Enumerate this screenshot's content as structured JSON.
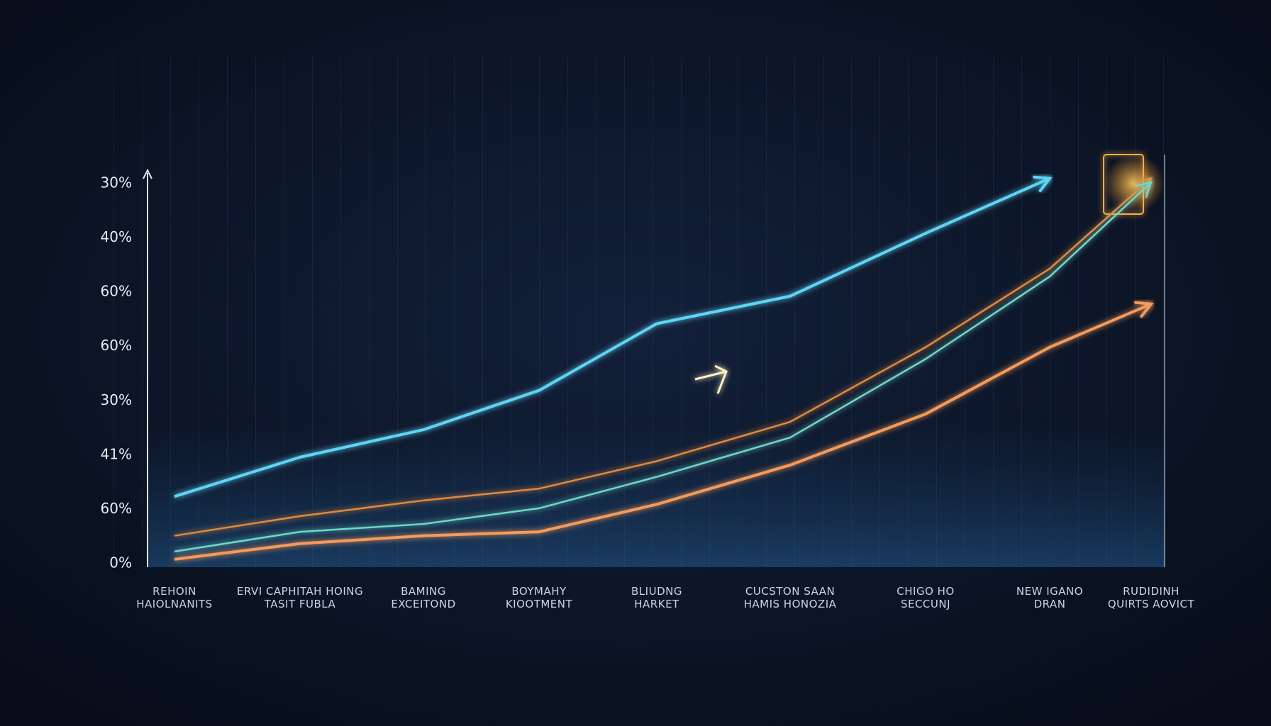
{
  "chart_data": {
    "type": "line",
    "y_labels": [
      "0%",
      "60%",
      "41%",
      "30%",
      "60%",
      "60%",
      "40%",
      "30%"
    ],
    "categories": [
      "REHOIN\nHAIOLNANITS",
      "ERVI CAPHITAH HOING\nTASIT FUBLA",
      "BAMING\nEXCEITOND",
      "BOYMAHY\nKIOOTMENT",
      "BLIUDNG\nHARKET",
      "CUCSTON SAAN\nHAMIS HONOZIA",
      "CHIGO HO\nSECCUNJ",
      "NEW IGANO\nDRAN",
      "RUDIDINH\nQUIRTS AOVICT"
    ],
    "ylim": [
      0,
      100
    ],
    "series": [
      {
        "color": "#5fd4f5",
        "values": [
          18,
          28,
          35,
          45,
          62,
          69,
          85,
          99,
          null
        ]
      },
      {
        "color": "#e08a3c",
        "values": [
          8,
          13,
          17,
          20,
          27,
          37,
          56,
          76,
          99
        ]
      },
      {
        "color": "#6fd8c8",
        "values": [
          4,
          9,
          11,
          15,
          23,
          33,
          53,
          74,
          98
        ]
      },
      {
        "color": "#f59a5a",
        "values": [
          2,
          6,
          8,
          9,
          16,
          26,
          39,
          56,
          67
        ]
      }
    ]
  }
}
